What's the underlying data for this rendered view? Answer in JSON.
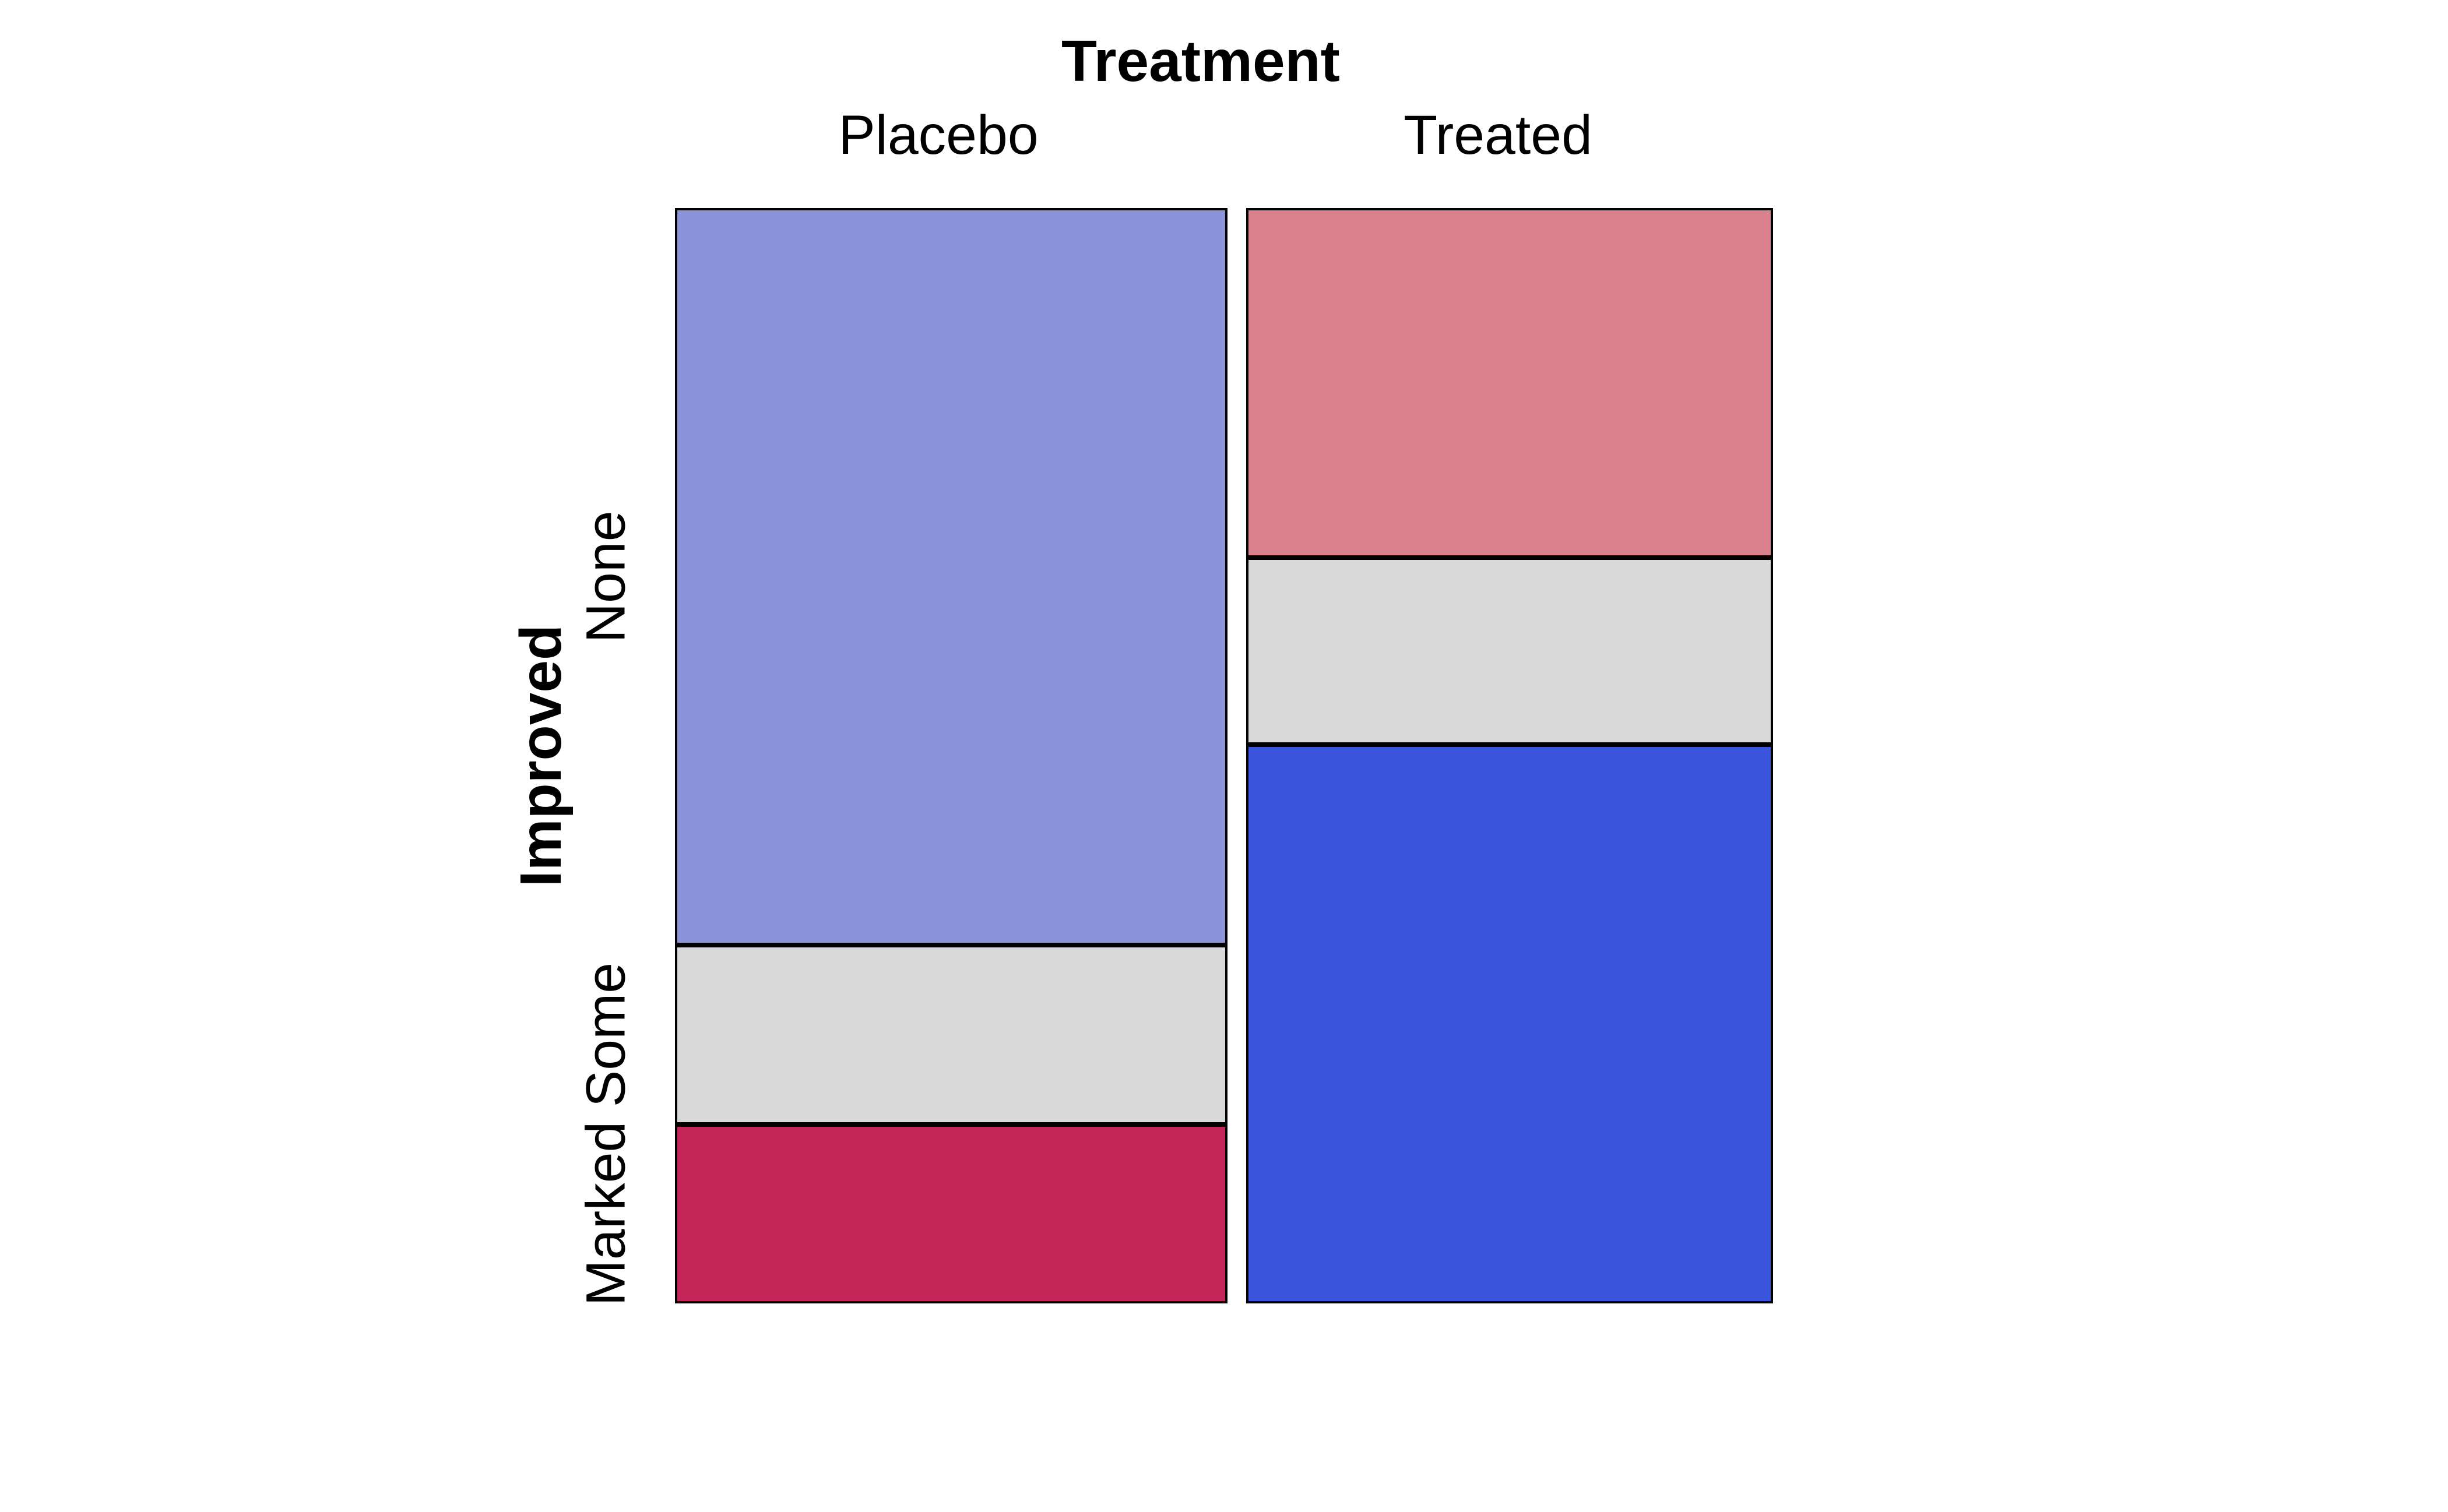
{
  "chart_data": {
    "type": "mosaic",
    "title": "Treatment",
    "x_variable": "Treatment",
    "y_variable": "Improved",
    "x_categories": [
      "Placebo",
      "Treated"
    ],
    "y_categories": [
      "None",
      "Some",
      "Marked"
    ],
    "legend": "none",
    "background": "#FFFFFF",
    "border_color": "#000000",
    "neutral_color": "#D9D9D9",
    "columns": [
      {
        "label": "Placebo",
        "width_fraction": 0.512,
        "segments": [
          {
            "label": "None",
            "height_fraction": 0.673,
            "color": "#8B93DA"
          },
          {
            "label": "Some",
            "height_fraction": 0.164,
            "color": "#D9D9D9"
          },
          {
            "label": "Marked",
            "height_fraction": 0.163,
            "color": "#C52659"
          }
        ]
      },
      {
        "label": "Treated",
        "width_fraction": 0.488,
        "segments": [
          {
            "label": "None",
            "height_fraction": 0.319,
            "color": "#D9818F"
          },
          {
            "label": "Some",
            "height_fraction": 0.171,
            "color": "#D9D9D9"
          },
          {
            "label": "Marked",
            "height_fraction": 0.51,
            "color": "#3A55DB"
          }
        ]
      }
    ]
  }
}
